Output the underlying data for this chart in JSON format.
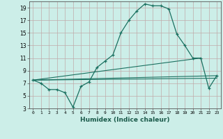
{
  "title": "",
  "xlabel": "Humidex (Indice chaleur)",
  "bg_color": "#cceee8",
  "grid_color": "#c0aaaa",
  "line_color": "#1a7060",
  "xlim": [
    -0.5,
    23.5
  ],
  "ylim": [
    3,
    20
  ],
  "xtick_vals": [
    0,
    1,
    2,
    3,
    4,
    5,
    6,
    7,
    8,
    9,
    10,
    11,
    12,
    13,
    14,
    15,
    16,
    17,
    18,
    19,
    20,
    21,
    22,
    23
  ],
  "ytick_vals": [
    3,
    5,
    7,
    9,
    11,
    13,
    15,
    17,
    19
  ],
  "series_main": {
    "x": [
      0,
      1,
      2,
      3,
      4,
      5,
      6,
      7,
      8,
      9,
      10,
      11,
      12,
      13,
      14,
      15,
      16,
      17,
      18,
      19,
      20,
      21,
      22,
      23
    ],
    "y": [
      7.5,
      7.0,
      6.0,
      6.0,
      5.5,
      3.2,
      6.5,
      7.2,
      9.5,
      10.5,
      11.5,
      15.0,
      17.0,
      18.5,
      19.6,
      19.3,
      19.3,
      18.8,
      14.8,
      13.0,
      11.0,
      11.0,
      6.2,
      8.2
    ]
  },
  "series_lines": [
    {
      "x": [
        0,
        21
      ],
      "y": [
        7.5,
        11.0
      ]
    },
    {
      "x": [
        0,
        23
      ],
      "y": [
        7.5,
        8.2
      ]
    },
    {
      "x": [
        0,
        23
      ],
      "y": [
        7.5,
        7.8
      ]
    }
  ]
}
